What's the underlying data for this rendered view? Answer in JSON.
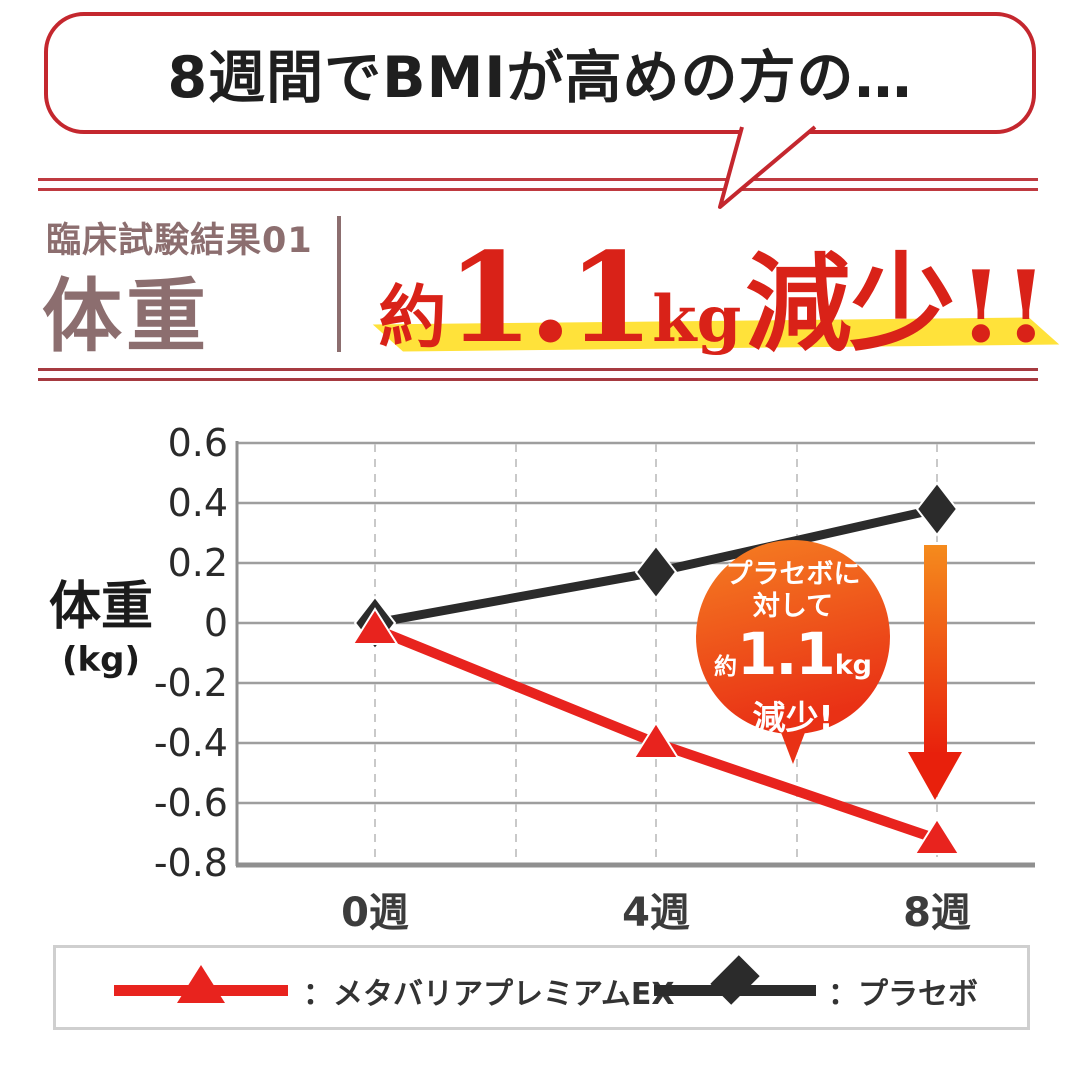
{
  "bubble": {
    "text": "8週間でBMIが高めの方の…"
  },
  "header": {
    "label": "臨床試験結果01",
    "title": "体重",
    "headline": {
      "prefix": "約",
      "value": "1.1",
      "unit": "kg",
      "suffix": "減少",
      "bang": "!!"
    }
  },
  "colors": {
    "accent_red": "#d92218",
    "bubble_border": "#c4272e",
    "rule_red": "#bf3a40",
    "header_mauve": "#8c6e6f",
    "highlight_yellow": "#ffe23a",
    "series_red": "#e8231e",
    "series_black": "#2b2b2b",
    "callout_orange_top": "#f57f22",
    "callout_red_bottom": "#e93115",
    "arrow_orange_top": "#f58b1d",
    "arrow_red_bottom": "#e8200c"
  },
  "chart_data": {
    "type": "line",
    "x": [
      0,
      4,
      8
    ],
    "x_labels": [
      "0週",
      "4週",
      "8週"
    ],
    "series": [
      {
        "name": "メタバリアプレミアムEX",
        "color": "#e8231e",
        "marker": "triangle",
        "values": [
          -0.02,
          -0.4,
          -0.72
        ]
      },
      {
        "name": "プラセボ",
        "color": "#2b2b2b",
        "marker": "diamond",
        "values": [
          0,
          0.17,
          0.38
        ]
      }
    ],
    "ylabel": "体重",
    "ylabel_unit": "(kg)",
    "ylim": [
      -0.8,
      0.6
    ],
    "yticks": [
      0.6,
      0.4,
      0.2,
      0,
      -0.2,
      -0.4,
      -0.6,
      -0.8
    ],
    "ytick_labels": [
      "0.6",
      "0.4",
      "0.2",
      "0",
      "-0.2",
      "-0.4",
      "-0.6",
      "-0.8"
    ],
    "grid": true,
    "legend_position": "bottom",
    "annotation": {
      "line1": "プラセボに",
      "line2": "対して",
      "prefix": "約",
      "value": "1.1",
      "unit": "kg",
      "suffix": "減少!"
    }
  },
  "legend": [
    {
      "label": "：メタバリアプレミアムEX",
      "marker": "red-triangle"
    },
    {
      "label": "：プラセボ",
      "marker": "black-diamond"
    }
  ]
}
